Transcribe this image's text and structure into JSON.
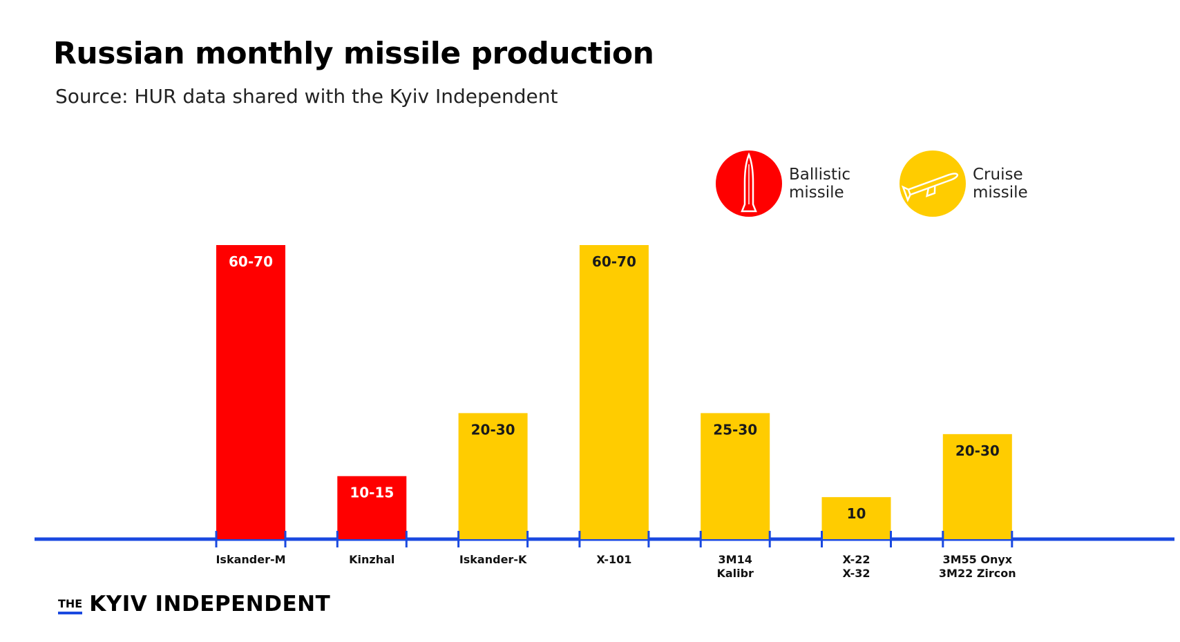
{
  "title": "Russian monthly missile production",
  "subtitle": "Source: HUR data shared with the Kyiv Independent",
  "legend": [
    {
      "label_line1": "Ballistic",
      "label_line2": "missile",
      "color": "#ff0000",
      "icon": "ballistic-missile-icon"
    },
    {
      "label_line1": "Cruise",
      "label_line2": "missile",
      "color": "#ffcc00",
      "icon": "cruise-missile-icon"
    }
  ],
  "brand": {
    "the": "THE",
    "name": "KYIV INDEPENDENT"
  },
  "colors": {
    "ballistic": "#ff0000",
    "cruise": "#ffcc00",
    "axis": "#1a49e0"
  },
  "chart_data": {
    "type": "bar",
    "title": "Russian monthly missile production",
    "subtitle": "Source: HUR data shared with the Kyiv Independent",
    "xlabel": "",
    "ylabel": "",
    "ylim": [
      0,
      70
    ],
    "grid": false,
    "legend_position": "top-right",
    "categories": [
      [
        "Iskander-M"
      ],
      [
        "Kinzhal"
      ],
      [
        "Iskander-K"
      ],
      [
        "X-101"
      ],
      [
        "3M14",
        "Kalibr"
      ],
      [
        "X-22",
        "X-32"
      ],
      [
        "3M55 Onyx",
        "3M22 Zircon"
      ]
    ],
    "values": [
      70,
      15,
      30,
      70,
      30,
      10,
      25
    ],
    "value_labels": [
      "60-70",
      "10-15",
      "20-30",
      "60-70",
      "25-30",
      "10",
      "20-30"
    ],
    "series_type": [
      "ballistic",
      "ballistic",
      "cruise",
      "cruise",
      "cruise",
      "cruise",
      "cruise"
    ]
  }
}
